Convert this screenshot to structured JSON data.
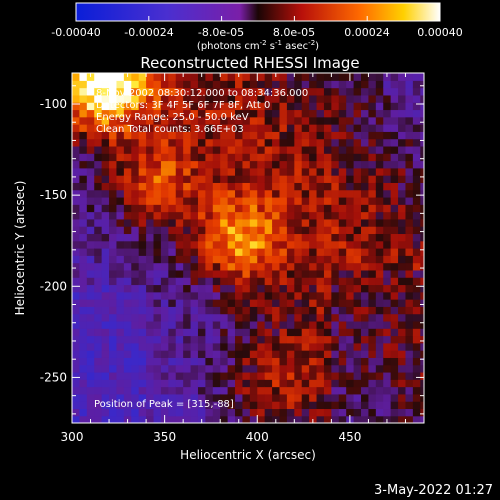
{
  "colorbar": {
    "tick_labels": [
      "-0.00040",
      "-0.00024",
      "-8.0e-05",
      "8.0e-05",
      "0.00024",
      "0.00040"
    ],
    "tick_values": [
      -0.0004,
      -0.00024,
      -8e-05,
      8e-05,
      0.00024,
      0.0004
    ],
    "range": [
      -0.0004,
      0.0004
    ],
    "unit_main": "(photons cm",
    "unit_sup1": "-2",
    "unit_mid": " s",
    "unit_sup2": "-1",
    "unit_end": " asec",
    "unit_sup3": "-2",
    "unit_close": ")"
  },
  "chart_data": {
    "type": "heatmap",
    "title": "Reconstructed RHESSI Image",
    "xlabel": "Heliocentric X (arcsec)",
    "ylabel": "Heliocentric Y (arcsec)",
    "xlim": [
      300,
      490
    ],
    "ylim": [
      -275,
      -83
    ],
    "xticks": [
      300,
      350,
      400,
      450
    ],
    "yticks": [
      -100,
      -150,
      -200,
      -250
    ],
    "annotations": [
      "8-Nov-2002 08:30:12.000 to 08:34:36.000",
      "Detectors: 3F 4F 5F 6F 7F 8F, Att 0",
      "Energy Range: 25.0 - 50.0 keV",
      "Clean    Total counts: 3.66E+03"
    ],
    "peak_label": "Position of Peak = [315,-88]",
    "peak": [
      315,
      -88
    ],
    "colormap": "RHESSI blue-purple-red-yellow-white",
    "value_range": [
      -0.0004,
      0.0004
    ]
  },
  "footer": {
    "timestamp": "3-May-2022 01:27"
  },
  "colors": {
    "background": "#000000",
    "text": "#ffffff"
  }
}
